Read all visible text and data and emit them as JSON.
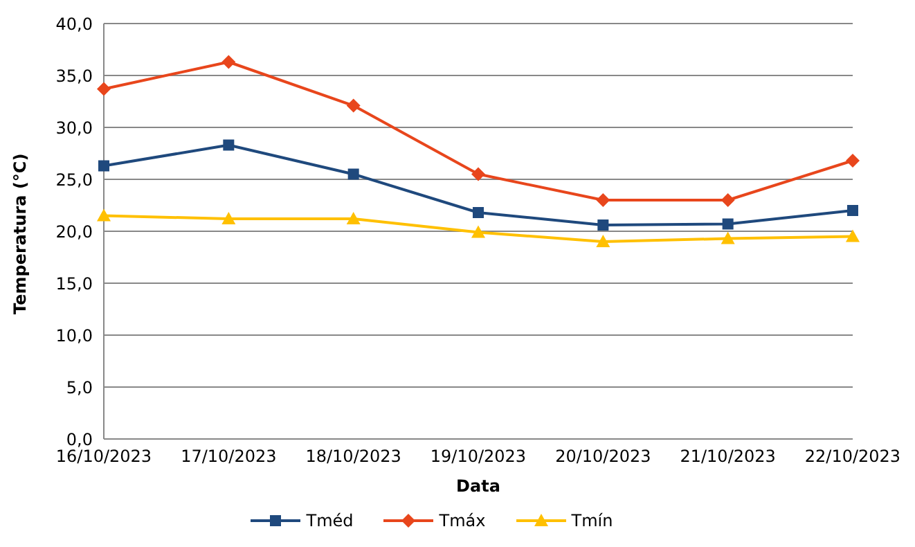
{
  "chart_data": {
    "type": "line",
    "xlabel": "Data",
    "ylabel": "Temperatura (°C)",
    "categories": [
      "16/10/2023",
      "17/10/2023",
      "18/10/2023",
      "19/10/2023",
      "20/10/2023",
      "21/10/2023",
      "22/10/2023"
    ],
    "series": [
      {
        "name": "Tméd",
        "color": "#1f497d",
        "marker": "square",
        "values": [
          26.3,
          28.3,
          25.5,
          21.8,
          20.6,
          20.7,
          22.0
        ]
      },
      {
        "name": "Tmáx",
        "color": "#e8461c",
        "marker": "diamond",
        "values": [
          33.7,
          36.3,
          32.1,
          25.5,
          23.0,
          23.0,
          26.8
        ]
      },
      {
        "name": "Tmín",
        "color": "#ffc000",
        "marker": "triangle",
        "values": [
          21.5,
          21.2,
          21.2,
          19.9,
          19.0,
          19.3,
          19.5
        ]
      }
    ],
    "ylim": [
      0,
      40
    ],
    "yticks": [
      {
        "value": 0,
        "label": "0,0"
      },
      {
        "value": 5,
        "label": "5,0"
      },
      {
        "value": 10,
        "label": "10,0"
      },
      {
        "value": 15,
        "label": "15,0"
      },
      {
        "value": 20,
        "label": "20,0"
      },
      {
        "value": 25,
        "label": "25,0"
      },
      {
        "value": 30,
        "label": "30,0"
      },
      {
        "value": 35,
        "label": "35,0"
      },
      {
        "value": 40,
        "label": "40,0"
      }
    ],
    "grid": "y",
    "legend": "bottom",
    "line_style": "solid"
  }
}
